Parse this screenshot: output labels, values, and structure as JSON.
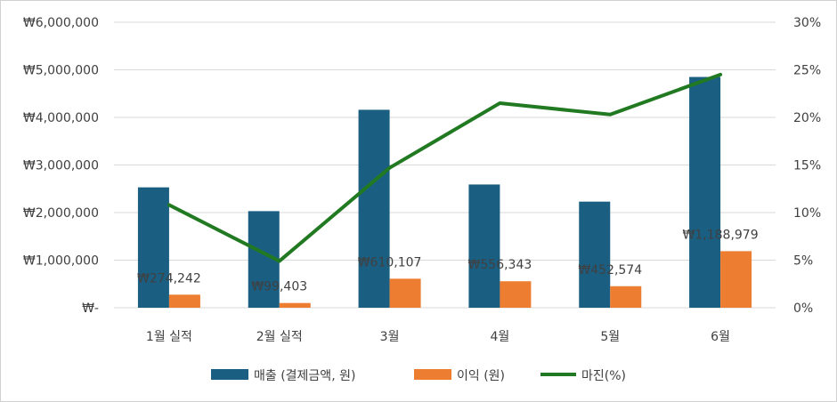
{
  "chart_data": {
    "type": "bar",
    "categories": [
      "1월 실적",
      "2월 실적",
      "3월",
      "4월",
      "5월",
      "6월"
    ],
    "series": [
      {
        "name": "매출 (결제금액, 원)",
        "type": "bar",
        "axis": "left",
        "color": "#1a5e82",
        "values": [
          2530000,
          2030000,
          4160000,
          2590000,
          2230000,
          4850000
        ]
      },
      {
        "name": "이익 (원)",
        "type": "bar",
        "axis": "left",
        "color": "#ed7d31",
        "values": [
          274242,
          99403,
          610107,
          556343,
          452574,
          1188979
        ],
        "data_labels": [
          "₩274,242",
          "₩99,403",
          "₩610,107",
          "₩556,343",
          "₩452,574",
          "₩1,188,979"
        ]
      },
      {
        "name": "마진(%)",
        "type": "line",
        "axis": "right",
        "color": "#217a21",
        "values": [
          10.8,
          4.9,
          14.7,
          21.5,
          20.3,
          24.5
        ]
      }
    ],
    "y_left": {
      "ylim": [
        0,
        6000000
      ],
      "ticks": [
        0,
        1000000,
        2000000,
        3000000,
        4000000,
        5000000,
        6000000
      ],
      "tick_labels": [
        "₩-",
        "₩1,000,000",
        "₩2,000,000",
        "₩3,000,000",
        "₩4,000,000",
        "₩5,000,000",
        "₩6,000,000"
      ]
    },
    "y_right": {
      "ylim": [
        0,
        30
      ],
      "ticks": [
        0,
        5,
        10,
        15,
        20,
        25,
        30
      ],
      "tick_labels": [
        "0%",
        "5%",
        "10%",
        "15%",
        "20%",
        "25%",
        "30%"
      ]
    },
    "grid": true,
    "legend_position": "bottom",
    "gridline_color": "#d9d9d9",
    "text_color": "#404040"
  }
}
